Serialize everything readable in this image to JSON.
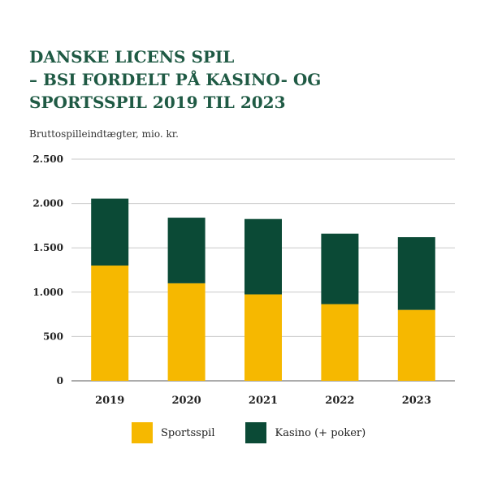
{
  "title_lines": [
    "DANSKE LICENS SPIL",
    "– BSI FORDELT PÅ KASINO- OG",
    "SPORTSSPIL 2019 TIL 2023"
  ],
  "unit_label": "Bruttospilleindtægter, mio. kr.",
  "colors": {
    "sportsspil": "#f6b800",
    "kasino": "#0b4a36",
    "grid": "#c9c9c9",
    "axis": "#7a7a7a",
    "text": "#222222"
  },
  "chart_data": {
    "type": "bar",
    "stacked": true,
    "title": "DANSKE LICENS SPIL – BSI FORDELT PÅ KASINO- OG SPORTSSPIL 2019 TIL 2023",
    "ylabel": "Bruttospilleindtægter, mio. kr.",
    "xlabel": "",
    "categories": [
      "2019",
      "2020",
      "2021",
      "2022",
      "2023"
    ],
    "series": [
      {
        "name": "Sportsspil",
        "values": [
          1300,
          1100,
          975,
          865,
          800
        ]
      },
      {
        "name": "Kasino (+ poker)",
        "values": [
          755,
          740,
          850,
          795,
          820
        ]
      }
    ],
    "ylim": [
      0,
      2500
    ],
    "yticks": [
      0,
      500,
      1000,
      1500,
      2000,
      2500
    ],
    "ytick_labels": [
      "0",
      "500",
      "1.000",
      "1.500",
      "2.000",
      "2.500"
    ],
    "grid": true,
    "legend_position": "bottom"
  }
}
